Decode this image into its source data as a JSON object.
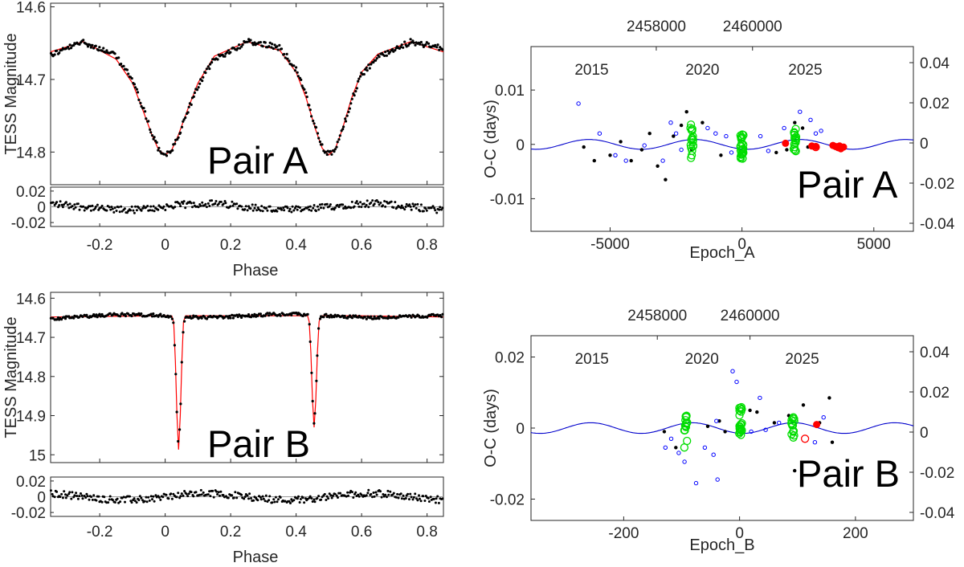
{
  "chart_data": [
    {
      "panel": "A-light-curve",
      "type": "scatter",
      "annotation": "Pair A",
      "xlabel": "Phase",
      "ylabel": "TESS Magnitude",
      "xlim": [
        -0.35,
        0.85
      ],
      "ylim": [
        14.845,
        14.595
      ],
      "y_reversed": true,
      "xticks": [
        "-0.2",
        "0",
        "0.2",
        "0.4",
        "0.6",
        "0.8"
      ],
      "yticks": [
        "14.6",
        "14.7",
        "14.8"
      ],
      "model": {
        "name": "model",
        "color": "#ff0000",
        "x": [
          -0.35,
          -0.25,
          -0.15,
          -0.1,
          -0.07,
          -0.04,
          -0.02,
          0,
          0.02,
          0.04,
          0.07,
          0.1,
          0.15,
          0.25,
          0.35,
          0.4,
          0.43,
          0.46,
          0.48,
          0.5,
          0.52,
          0.54,
          0.57,
          0.6,
          0.65,
          0.75,
          0.85
        ],
        "y": [
          14.662,
          14.648,
          14.672,
          14.705,
          14.74,
          14.777,
          14.797,
          14.804,
          14.797,
          14.777,
          14.74,
          14.705,
          14.668,
          14.648,
          14.66,
          14.69,
          14.725,
          14.77,
          14.795,
          14.804,
          14.795,
          14.77,
          14.725,
          14.69,
          14.665,
          14.648,
          14.662
        ]
      },
      "data_color": "#000000",
      "residuals": {
        "yticks": [
          "0.02",
          "0",
          "-0.02"
        ],
        "ylim": [
          -0.025,
          0.025
        ],
        "color": "#000000"
      }
    },
    {
      "panel": "A-oc",
      "type": "scatter",
      "annotation": "Pair A",
      "xlabel": "Epoch_A",
      "ylabel": "O-C (days)",
      "xlim": [
        -8000,
        6500
      ],
      "ylim": [
        -0.016,
        0.018
      ],
      "xticks": [
        -5000,
        0,
        5000
      ],
      "xticklabels": [
        "-5000",
        "0",
        "5000"
      ],
      "yticks": [
        -0.01,
        0,
        0.01
      ],
      "yticklabels": [
        "-0.01",
        "0",
        "0.01"
      ],
      "top_axis": {
        "ticks": [
          "2458000",
          "2460000"
        ],
        "epoch_at_tick": [
          -3250,
          400
        ]
      },
      "year_labels": [
        {
          "text": "2015",
          "epoch": -5700
        },
        {
          "text": "2020",
          "epoch": -1500
        },
        {
          "text": "2025",
          "epoch": 2400
        }
      ],
      "right_axis": {
        "ylim": [
          -0.044,
          0.048
        ],
        "ticks": [
          0.04,
          0.02,
          0,
          -0.02,
          -0.04
        ],
        "ticklabels": [
          "0.04",
          "0.02",
          "0",
          "-0.02",
          "-0.04"
        ]
      },
      "fit": {
        "name": "LTTE fit",
        "color": "#0000cc",
        "amplitude": 0.0009,
        "period_epochs": 4000,
        "phase_epoch": -1800
      },
      "series": [
        {
          "name": "black",
          "color": "#000000",
          "style": "dot",
          "points": [
            [
              -6000,
              -0.0005
            ],
            [
              -5600,
              -0.003
            ],
            [
              -5000,
              -0.002
            ],
            [
              -4600,
              0.0005
            ],
            [
              -4200,
              -0.003
            ],
            [
              -3800,
              -0.001
            ],
            [
              -3500,
              0.002
            ],
            [
              -3200,
              -0.004
            ],
            [
              -2900,
              -0.0065
            ],
            [
              -2600,
              0.0015
            ],
            [
              -2300,
              0.0035
            ],
            [
              -2100,
              0.006
            ],
            [
              -1900,
              -0.001
            ],
            [
              -1500,
              0.004
            ],
            [
              2000,
              0.004
            ],
            [
              1700,
              -0.001
            ],
            [
              2300,
              0.003
            ],
            [
              2500,
              -0.0005
            ],
            [
              1300,
              -0.0015
            ],
            [
              -800,
              -0.002
            ]
          ]
        },
        {
          "name": "blue",
          "color": "#0000ff",
          "style": "open-small",
          "points": [
            [
              -6200,
              0.0075
            ],
            [
              -5400,
              0.002
            ],
            [
              -4800,
              -0.002
            ],
            [
              -4400,
              -0.003
            ],
            [
              -3700,
              -0.0002
            ],
            [
              -3000,
              -0.003
            ],
            [
              -2700,
              0.004
            ],
            [
              -2500,
              0.002
            ],
            [
              -1300,
              0.003
            ],
            [
              -1000,
              0.002
            ],
            [
              -600,
              0.0015
            ],
            [
              700,
              0.0015
            ],
            [
              1000,
              -0.0012
            ],
            [
              1600,
              0.003
            ],
            [
              2200,
              0.006
            ],
            [
              2600,
              0.0045
            ],
            [
              3000,
              0.0025
            ],
            [
              2800,
              0.002
            ],
            [
              -2300,
              -0.001
            ],
            [
              -400,
              -0.0015
            ]
          ]
        },
        {
          "name": "green",
          "color": "#00dd00",
          "style": "open-large",
          "clusters": [
            {
              "epoch": -1900,
              "y_min": -0.0025,
              "y_max": 0.004,
              "count": 18
            },
            {
              "epoch": 0,
              "y_min": -0.003,
              "y_max": 0.002,
              "count": 26
            },
            {
              "epoch": 2000,
              "y_min": -0.0015,
              "y_max": 0.0035,
              "count": 16
            }
          ]
        },
        {
          "name": "red",
          "color": "#ff0000",
          "style": "filled-large",
          "points": [
            [
              1650,
              0.0002
            ],
            [
              2650,
              -0.0003
            ],
            [
              2800,
              -0.0004
            ],
            [
              3450,
              -0.0002
            ],
            [
              3550,
              -0.0004
            ],
            [
              3650,
              -0.0006
            ],
            [
              3750,
              -0.0008
            ],
            [
              3850,
              -0.0005
            ],
            [
              3700,
              -0.0003
            ]
          ]
        },
        {
          "name": "red-open",
          "color": "#ff0000",
          "style": "open-large",
          "points": [
            [
              2800,
              -0.0005
            ],
            [
              3650,
              -0.0005
            ]
          ]
        }
      ]
    },
    {
      "panel": "B-light-curve",
      "type": "scatter",
      "annotation": "Pair B",
      "xlabel": "Phase",
      "ylabel": "TESS Magnitude",
      "xlim": [
        -0.35,
        0.85
      ],
      "ylim": [
        15.02,
        14.585
      ],
      "y_reversed": true,
      "xticks": [
        "-0.2",
        "0",
        "0.2",
        "0.4",
        "0.6",
        "0.8"
      ],
      "yticks": [
        "14.6",
        "14.7",
        "14.8",
        "14.9",
        "15"
      ],
      "model": {
        "name": "model",
        "color": "#ff0000",
        "x": [
          -0.35,
          0.0,
          0.02,
          0.026,
          0.031,
          0.036,
          0.041,
          0.046,
          0.051,
          0.056,
          0.062,
          0.2,
          0.435,
          0.44,
          0.445,
          0.45,
          0.455,
          0.46,
          0.465,
          0.47,
          0.475,
          0.48,
          0.485,
          0.6,
          0.85
        ],
        "y": [
          14.648,
          14.645,
          14.645,
          14.66,
          14.76,
          14.9,
          14.987,
          14.9,
          14.76,
          14.66,
          14.645,
          14.645,
          14.645,
          14.66,
          14.74,
          14.86,
          14.93,
          14.86,
          14.74,
          14.66,
          14.646,
          14.645,
          14.645,
          14.645,
          14.648
        ]
      },
      "data_color": "#000000",
      "residuals": {
        "yticks": [
          "0.02",
          "0",
          "-0.02"
        ],
        "ylim": [
          -0.025,
          0.025
        ],
        "color": "#000000"
      }
    },
    {
      "panel": "B-oc",
      "type": "scatter",
      "annotation": "Pair B",
      "xlabel": "Epoch_B",
      "ylabel": "O-C (days)",
      "xlim": [
        -360,
        300
      ],
      "ylim": [
        -0.026,
        0.026
      ],
      "xticks": [
        -200,
        0,
        200
      ],
      "xticklabels": [
        "-200",
        "0",
        "200"
      ],
      "yticks": [
        -0.02,
        0,
        0.02
      ],
      "yticklabels": [
        "-0.02",
        "0",
        "0.02"
      ],
      "top_axis": {
        "ticks": [
          "2458000",
          "2460000"
        ],
        "epoch_at_tick": [
          -142,
          18
        ]
      },
      "year_labels": [
        {
          "text": "2015",
          "epoch": -255
        },
        {
          "text": "2020",
          "epoch": -65
        },
        {
          "text": "2025",
          "epoch": 108
        }
      ],
      "right_axis": {
        "ylim": [
          -0.044,
          0.048
        ],
        "ticks": [
          0.04,
          0.02,
          0,
          -0.02,
          -0.04
        ],
        "ticklabels": [
          "0.04",
          "0.02",
          "0",
          "-0.02",
          "-0.04"
        ]
      },
      "fit": {
        "name": "LTTE fit",
        "color": "#0000cc",
        "amplitude": 0.0015,
        "period_epochs": 175,
        "phase_epoch": -82
      },
      "series": [
        {
          "name": "black",
          "color": "#000000",
          "style": "dot",
          "points": [
            [
              -130,
              -0.001
            ],
            [
              -110,
              -0.0055
            ],
            [
              -55,
              0.0005
            ],
            [
              -35,
              0.002
            ],
            [
              -25,
              -0.001
            ],
            [
              18,
              0.005
            ],
            [
              30,
              0.0045
            ],
            [
              60,
              0.0015
            ],
            [
              85,
              0.0035
            ],
            [
              110,
              0.0065
            ],
            [
              138,
              0.0015
            ],
            [
              155,
              0.0085
            ],
            [
              160,
              -0.004
            ],
            [
              95,
              -0.012
            ]
          ]
        },
        {
          "name": "blue",
          "color": "#0000ff",
          "style": "open-small",
          "points": [
            [
              -128,
              -0.0055
            ],
            [
              -118,
              -0.003
            ],
            [
              -105,
              -0.007
            ],
            [
              -95,
              -0.0095
            ],
            [
              -75,
              -0.0155
            ],
            [
              -45,
              -0.0075
            ],
            [
              -40,
              0.002
            ],
            [
              -38,
              -0.0145
            ],
            [
              -12,
              0.016
            ],
            [
              -5,
              0.013
            ],
            [
              20,
              -0.001
            ],
            [
              45,
              -0.0005
            ],
            [
              68,
              0.0015
            ],
            [
              130,
              -0.004
            ],
            [
              145,
              0.003
            ],
            [
              -60,
              -0.0055
            ],
            [
              35,
              0.0085
            ]
          ]
        },
        {
          "name": "green",
          "color": "#00dd00",
          "style": "open-large",
          "clusters": [
            {
              "epoch": -93,
              "y_min": -0.0055,
              "y_max": 0.0035,
              "count": 16
            },
            {
              "epoch": 2,
              "y_min": -0.002,
              "y_max": 0.006,
              "count": 22
            },
            {
              "epoch": 92,
              "y_min": -0.003,
              "y_max": 0.003,
              "count": 14
            }
          ]
        },
        {
          "name": "red",
          "color": "#ff0000",
          "style": "filled-large",
          "points": [
            [
              133,
              0.001
            ]
          ]
        },
        {
          "name": "red-open",
          "color": "#ff0000",
          "style": "open-large",
          "points": [
            [
              113,
              -0.003
            ]
          ]
        }
      ]
    }
  ]
}
